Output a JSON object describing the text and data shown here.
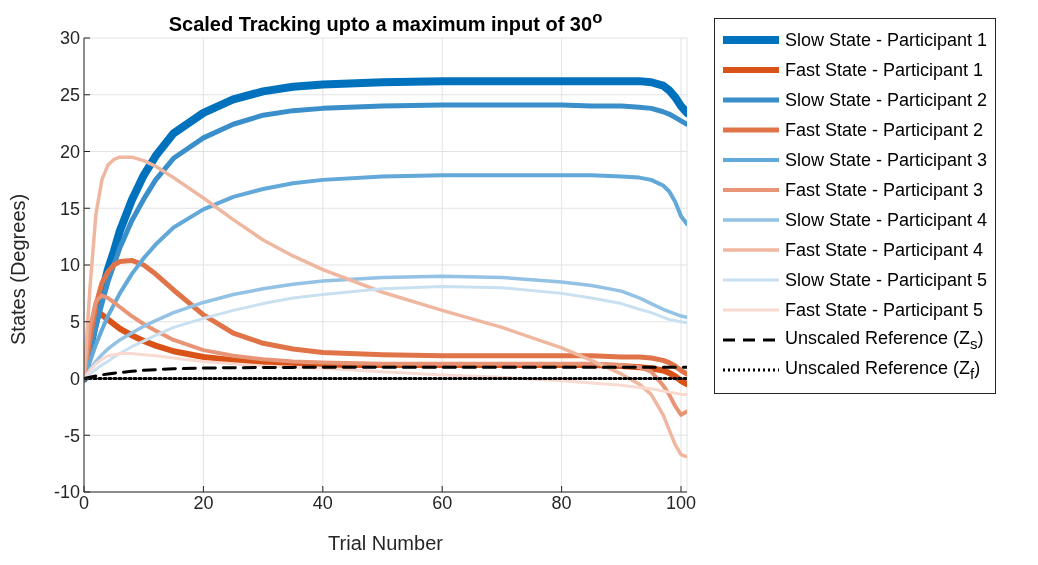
{
  "chart_data": {
    "type": "line",
    "title": "Scaled Tracking upto a maximum input of 30$^{o}$",
    "xlabel": "Trial Number",
    "ylabel": "States (Degrees)",
    "x": [
      0,
      1,
      2,
      3,
      4,
      5,
      6,
      8,
      10,
      12,
      15,
      20,
      25,
      30,
      35,
      40,
      50,
      60,
      70,
      80,
      85,
      90,
      93,
      95,
      97,
      98,
      99,
      100,
      101
    ],
    "xlim": [
      0,
      101
    ],
    "xticks": [
      0,
      20,
      40,
      60,
      80,
      100
    ],
    "ylim": [
      -10,
      30
    ],
    "yticks": [
      -10,
      -5,
      0,
      5,
      10,
      15,
      20,
      25,
      30
    ],
    "grid": true,
    "legend": "right",
    "marker": "none",
    "line_style": "solid",
    "series": [
      {
        "name": "Slow State - Participant 1",
        "color": "#0072bd",
        "values": [
          0,
          2.7,
          5.2,
          7.5,
          9.6,
          11.2,
          13.0,
          15.7,
          17.9,
          19.6,
          21.6,
          23.4,
          24.6,
          25.3,
          25.7,
          25.9,
          26.1,
          26.2,
          26.2,
          26.2,
          26.2,
          26.2,
          26.2,
          26.1,
          25.8,
          25.4,
          24.8,
          24.0,
          23.4
        ]
      },
      {
        "name": "Fast State - Participant 1",
        "color": "#d95319",
        "values": [
          0,
          4.0,
          6.0,
          5.6,
          5.2,
          4.8,
          4.4,
          3.8,
          3.3,
          2.9,
          2.4,
          1.9,
          1.6,
          1.4,
          1.3,
          1.2,
          1.2,
          1.2,
          1.2,
          1.2,
          1.2,
          1.1,
          1.0,
          0.9,
          0.7,
          0.5,
          0.2,
          -0.2,
          -0.5
        ]
      },
      {
        "name": "Slow State - Participant 2",
        "color": "#3a8fca",
        "values": [
          0,
          2.4,
          4.6,
          6.6,
          8.5,
          10.0,
          11.5,
          13.9,
          15.8,
          17.5,
          19.4,
          21.2,
          22.4,
          23.2,
          23.6,
          23.8,
          24.0,
          24.1,
          24.1,
          24.1,
          24.0,
          24.0,
          23.9,
          23.8,
          23.5,
          23.3,
          23.0,
          22.7,
          22.4
        ]
      },
      {
        "name": "Fast State - Participant 2",
        "color": "#e07448",
        "values": [
          0,
          3.5,
          6.5,
          8.4,
          9.4,
          10.0,
          10.3,
          10.4,
          10.0,
          9.2,
          7.8,
          5.6,
          4.0,
          3.1,
          2.6,
          2.3,
          2.1,
          2.0,
          2.0,
          2.0,
          2.0,
          1.9,
          1.9,
          1.8,
          1.6,
          1.4,
          1.1,
          0.7,
          0.4
        ]
      },
      {
        "name": "Slow State - Participant 3",
        "color": "#62a8d8",
        "values": [
          0,
          1.5,
          3.0,
          4.3,
          5.5,
          6.5,
          7.5,
          9.2,
          10.6,
          11.8,
          13.3,
          14.9,
          16.0,
          16.7,
          17.2,
          17.5,
          17.8,
          17.9,
          17.9,
          17.9,
          17.9,
          17.8,
          17.7,
          17.5,
          17.0,
          16.5,
          15.6,
          14.3,
          13.6
        ]
      },
      {
        "name": "Fast State - Participant 3",
        "color": "#e89577",
        "values": [
          0,
          4.5,
          6.8,
          7.3,
          7.1,
          6.7,
          6.3,
          5.5,
          4.8,
          4.2,
          3.4,
          2.5,
          2.0,
          1.7,
          1.5,
          1.4,
          1.3,
          1.3,
          1.3,
          1.3,
          1.3,
          1.2,
          1.0,
          0.6,
          -0.6,
          -1.4,
          -2.4,
          -3.2,
          -2.9
        ]
      },
      {
        "name": "Slow State - Participant 4",
        "color": "#93c2e4",
        "values": [
          0,
          0.8,
          1.5,
          2.1,
          2.6,
          3.0,
          3.4,
          4.0,
          4.6,
          5.1,
          5.8,
          6.7,
          7.4,
          7.9,
          8.3,
          8.6,
          8.9,
          9.0,
          8.9,
          8.5,
          8.2,
          7.7,
          7.1,
          6.6,
          6.1,
          5.9,
          5.7,
          5.5,
          5.4
        ]
      },
      {
        "name": "Fast State - Participant 4",
        "color": "#f0b7a0",
        "values": [
          0,
          8,
          14.5,
          17.5,
          18.8,
          19.3,
          19.5,
          19.5,
          19.2,
          18.7,
          17.7,
          15.9,
          14.0,
          12.2,
          10.8,
          9.6,
          7.6,
          6.0,
          4.5,
          2.7,
          1.6,
          0.4,
          -0.5,
          -1.4,
          -3.2,
          -4.5,
          -5.8,
          -6.7,
          -6.9
        ]
      },
      {
        "name": "Slow State - Participant 5",
        "color": "#c9e0f1",
        "values": [
          0,
          0.4,
          0.8,
          1.2,
          1.5,
          1.9,
          2.2,
          2.8,
          3.3,
          3.8,
          4.5,
          5.3,
          6.0,
          6.6,
          7.1,
          7.4,
          7.9,
          8.1,
          8.0,
          7.5,
          7.1,
          6.6,
          6.1,
          5.8,
          5.4,
          5.2,
          5.1,
          5.0,
          4.9
        ]
      },
      {
        "name": "Fast State - Participant 5",
        "color": "#f8dad0",
        "values": [
          0,
          0.7,
          1.3,
          1.7,
          2.0,
          2.1,
          2.2,
          2.2,
          2.1,
          2.0,
          1.8,
          1.5,
          1.3,
          1.1,
          1.0,
          0.9,
          0.6,
          0.3,
          0.1,
          -0.2,
          -0.4,
          -0.6,
          -0.8,
          -0.9,
          -1.1,
          -1.2,
          -1.3,
          -1.4,
          -1.4
        ]
      },
      {
        "name": "Unscaled Reference (Z$_{s}$)",
        "color": "#000000",
        "line_style": "dashed",
        "values": [
          0,
          0.12,
          0.23,
          0.32,
          0.4,
          0.47,
          0.53,
          0.63,
          0.72,
          0.78,
          0.85,
          0.92,
          0.95,
          0.97,
          0.98,
          0.99,
          1,
          1,
          1,
          1,
          1,
          1,
          1,
          1,
          1,
          1,
          1,
          1,
          1
        ]
      },
      {
        "name": "Unscaled Reference (Z$_{f}$)",
        "color": "#000000",
        "line_style": "dotted",
        "values": [
          0,
          0,
          0,
          0,
          0,
          0,
          0,
          0,
          0,
          0,
          0,
          0,
          0,
          0,
          0,
          0,
          0,
          0,
          0,
          0,
          0,
          0,
          0,
          0,
          0,
          0,
          0,
          0,
          0
        ]
      }
    ]
  }
}
